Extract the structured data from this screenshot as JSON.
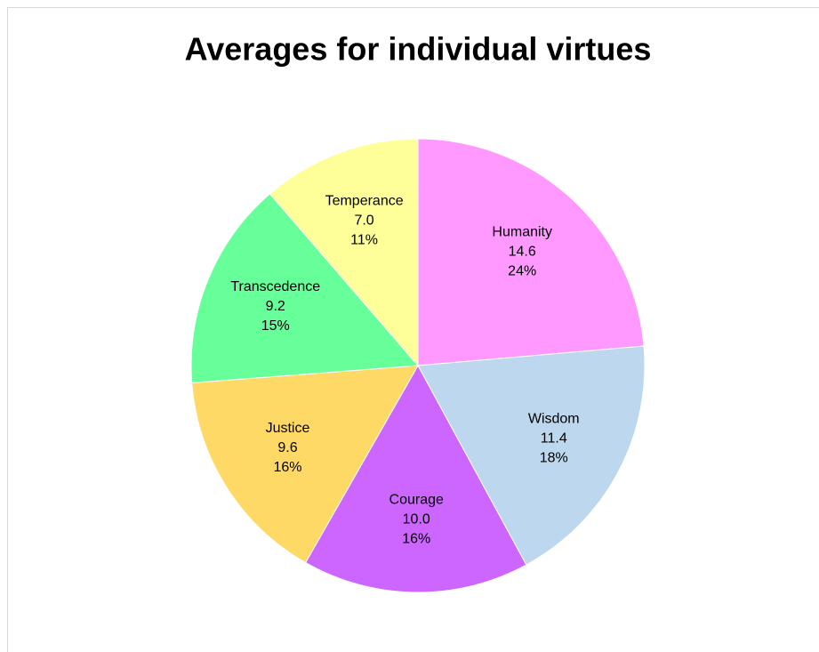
{
  "chart_data": {
    "type": "pie",
    "title": "Averages for individual virtues",
    "categories": [
      "Humanity",
      "Wisdom",
      "Courage",
      "Justice",
      "Transcedence",
      "Temperance"
    ],
    "values": [
      14.6,
      11.4,
      10.0,
      9.6,
      9.2,
      7.0
    ],
    "value_labels": [
      "14.6",
      "11.4",
      "10.0",
      "9.6",
      "9.2",
      "7.0"
    ],
    "percent_labels": [
      "24%",
      "18%",
      "16%",
      "16%",
      "15%",
      "11%"
    ],
    "colors": [
      "#ff99ff",
      "#bdd7ee",
      "#cc66ff",
      "#ffd966",
      "#66ff99",
      "#ffff99"
    ]
  }
}
